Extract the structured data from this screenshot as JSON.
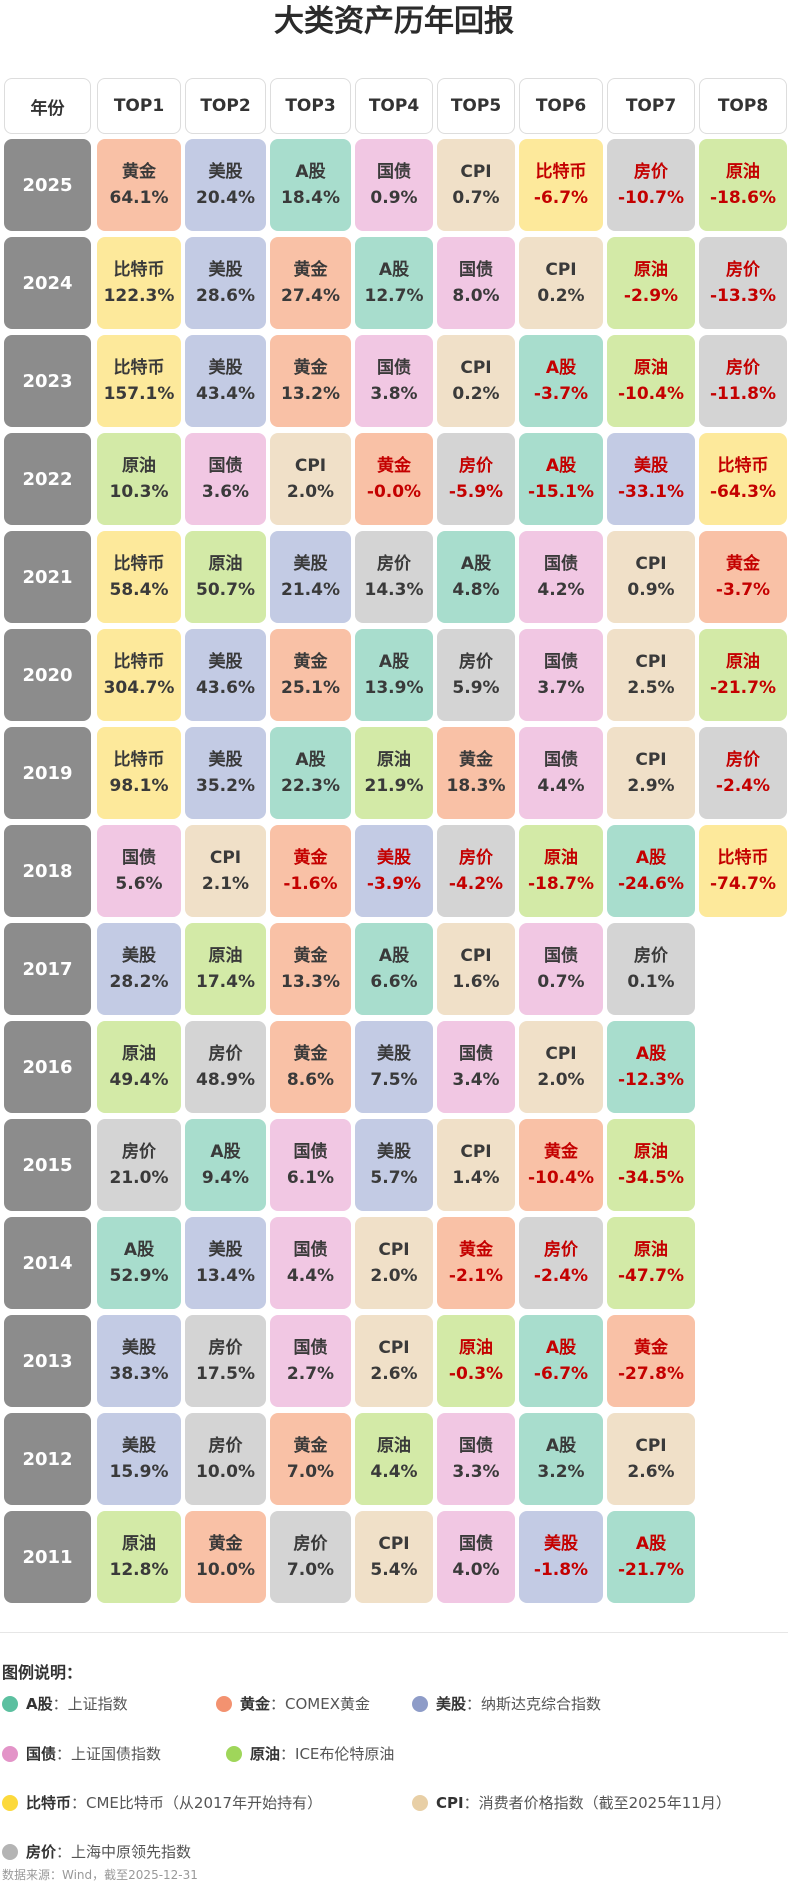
{
  "title": "大类资产历年回报",
  "headers": [
    "年份",
    "TOP1",
    "TOP2",
    "TOP3",
    "TOP4",
    "TOP5",
    "TOP6",
    "TOP7",
    "TOP8"
  ],
  "colors": {
    "A股": "#a8ddcd",
    "黄金": "#f9c1a6",
    "美股": "#c3cbe4",
    "国债": "#f1c7e3",
    "原油": "#d3eaa7",
    "比特币": "#fde99b",
    "CPI": "#f0e0c8",
    "房价": "#d4d4d4"
  },
  "negative_color": "#c40000",
  "rows": [
    {
      "year": "2025",
      "cells": [
        [
          "黄金",
          "64.1%"
        ],
        [
          "美股",
          "20.4%"
        ],
        [
          "A股",
          "18.4%"
        ],
        [
          "国债",
          "0.9%"
        ],
        [
          "CPI",
          "0.7%"
        ],
        [
          "比特币",
          "-6.7%"
        ],
        [
          "房价",
          "-10.7%"
        ],
        [
          "原油",
          "-18.6%"
        ]
      ]
    },
    {
      "year": "2024",
      "cells": [
        [
          "比特币",
          "122.3%"
        ],
        [
          "美股",
          "28.6%"
        ],
        [
          "黄金",
          "27.4%"
        ],
        [
          "A股",
          "12.7%"
        ],
        [
          "国债",
          "8.0%"
        ],
        [
          "CPI",
          "0.2%"
        ],
        [
          "原油",
          "-2.9%"
        ],
        [
          "房价",
          "-13.3%"
        ]
      ]
    },
    {
      "year": "2023",
      "cells": [
        [
          "比特币",
          "157.1%"
        ],
        [
          "美股",
          "43.4%"
        ],
        [
          "黄金",
          "13.2%"
        ],
        [
          "国债",
          "3.8%"
        ],
        [
          "CPI",
          "0.2%"
        ],
        [
          "A股",
          "-3.7%"
        ],
        [
          "原油",
          "-10.4%"
        ],
        [
          "房价",
          "-11.8%"
        ]
      ]
    },
    {
      "year": "2022",
      "cells": [
        [
          "原油",
          "10.3%"
        ],
        [
          "国债",
          "3.6%"
        ],
        [
          "CPI",
          "2.0%"
        ],
        [
          "黄金",
          "-0.0%"
        ],
        [
          "房价",
          "-5.9%"
        ],
        [
          "A股",
          "-15.1%"
        ],
        [
          "美股",
          "-33.1%"
        ],
        [
          "比特币",
          "-64.3%"
        ]
      ]
    },
    {
      "year": "2021",
      "cells": [
        [
          "比特币",
          "58.4%"
        ],
        [
          "原油",
          "50.7%"
        ],
        [
          "美股",
          "21.4%"
        ],
        [
          "房价",
          "14.3%"
        ],
        [
          "A股",
          "4.8%"
        ],
        [
          "国债",
          "4.2%"
        ],
        [
          "CPI",
          "0.9%"
        ],
        [
          "黄金",
          "-3.7%"
        ]
      ]
    },
    {
      "year": "2020",
      "cells": [
        [
          "比特币",
          "304.7%"
        ],
        [
          "美股",
          "43.6%"
        ],
        [
          "黄金",
          "25.1%"
        ],
        [
          "A股",
          "13.9%"
        ],
        [
          "房价",
          "5.9%"
        ],
        [
          "国债",
          "3.7%"
        ],
        [
          "CPI",
          "2.5%"
        ],
        [
          "原油",
          "-21.7%"
        ]
      ]
    },
    {
      "year": "2019",
      "cells": [
        [
          "比特币",
          "98.1%"
        ],
        [
          "美股",
          "35.2%"
        ],
        [
          "A股",
          "22.3%"
        ],
        [
          "原油",
          "21.9%"
        ],
        [
          "黄金",
          "18.3%"
        ],
        [
          "国债",
          "4.4%"
        ],
        [
          "CPI",
          "2.9%"
        ],
        [
          "房价",
          "-2.4%"
        ]
      ]
    },
    {
      "year": "2018",
      "cells": [
        [
          "国债",
          "5.6%"
        ],
        [
          "CPI",
          "2.1%"
        ],
        [
          "黄金",
          "-1.6%"
        ],
        [
          "美股",
          "-3.9%"
        ],
        [
          "房价",
          "-4.2%"
        ],
        [
          "原油",
          "-18.7%"
        ],
        [
          "A股",
          "-24.6%"
        ],
        [
          "比特币",
          "-74.7%"
        ]
      ]
    },
    {
      "year": "2017",
      "cells": [
        [
          "美股",
          "28.2%"
        ],
        [
          "原油",
          "17.4%"
        ],
        [
          "黄金",
          "13.3%"
        ],
        [
          "A股",
          "6.6%"
        ],
        [
          "CPI",
          "1.6%"
        ],
        [
          "国债",
          "0.7%"
        ],
        [
          "房价",
          "0.1%"
        ]
      ]
    },
    {
      "year": "2016",
      "cells": [
        [
          "原油",
          "49.4%"
        ],
        [
          "房价",
          "48.9%"
        ],
        [
          "黄金",
          "8.6%"
        ],
        [
          "美股",
          "7.5%"
        ],
        [
          "国债",
          "3.4%"
        ],
        [
          "CPI",
          "2.0%"
        ],
        [
          "A股",
          "-12.3%"
        ]
      ]
    },
    {
      "year": "2015",
      "cells": [
        [
          "房价",
          "21.0%"
        ],
        [
          "A股",
          "9.4%"
        ],
        [
          "国债",
          "6.1%"
        ],
        [
          "美股",
          "5.7%"
        ],
        [
          "CPI",
          "1.4%"
        ],
        [
          "黄金",
          "-10.4%"
        ],
        [
          "原油",
          "-34.5%"
        ]
      ]
    },
    {
      "year": "2014",
      "cells": [
        [
          "A股",
          "52.9%"
        ],
        [
          "美股",
          "13.4%"
        ],
        [
          "国债",
          "4.4%"
        ],
        [
          "CPI",
          "2.0%"
        ],
        [
          "黄金",
          "-2.1%"
        ],
        [
          "房价",
          "-2.4%"
        ],
        [
          "原油",
          "-47.7%"
        ]
      ]
    },
    {
      "year": "2013",
      "cells": [
        [
          "美股",
          "38.3%"
        ],
        [
          "房价",
          "17.5%"
        ],
        [
          "国债",
          "2.7%"
        ],
        [
          "CPI",
          "2.6%"
        ],
        [
          "原油",
          "-0.3%"
        ],
        [
          "A股",
          "-6.7%"
        ],
        [
          "黄金",
          "-27.8%"
        ]
      ]
    },
    {
      "year": "2012",
      "cells": [
        [
          "美股",
          "15.9%"
        ],
        [
          "房价",
          "10.0%"
        ],
        [
          "黄金",
          "7.0%"
        ],
        [
          "原油",
          "4.4%"
        ],
        [
          "国债",
          "3.3%"
        ],
        [
          "A股",
          "3.2%"
        ],
        [
          "CPI",
          "2.6%"
        ]
      ]
    },
    {
      "year": "2011",
      "cells": [
        [
          "原油",
          "12.8%"
        ],
        [
          "黄金",
          "10.0%"
        ],
        [
          "房价",
          "7.0%"
        ],
        [
          "CPI",
          "5.4%"
        ],
        [
          "国债",
          "4.0%"
        ],
        [
          "美股",
          "-1.8%"
        ],
        [
          "A股",
          "-21.7%"
        ]
      ]
    }
  ],
  "legend": {
    "title": "图例说明：",
    "items": [
      {
        "name": "A股",
        "desc": "：上证指数",
        "color": "#5cc0a0"
      },
      {
        "name": "黄金",
        "desc": "：COMEX黄金",
        "color": "#f39270"
      },
      {
        "name": "美股",
        "desc": "：纳斯达克综合指数",
        "color": "#8e9cc8"
      },
      {
        "name": "国债",
        "desc": "：上证国债指数",
        "color": "#e394c8"
      },
      {
        "name": "原油",
        "desc": "：ICE布伦特原油",
        "color": "#9fd65a"
      },
      {
        "name": "比特币",
        "desc": "：CME比特币（从2017年开始持有）",
        "color": "#fcd93c"
      },
      {
        "name": "CPI",
        "desc": "：消费者价格指数（截至2025年11月）",
        "color": "#e8cfa6"
      },
      {
        "name": "房价",
        "desc": "：上海中原领先指数",
        "color": "#b4b4b4"
      }
    ]
  },
  "source": "数据来源：Wind，截至2025-12-31"
}
